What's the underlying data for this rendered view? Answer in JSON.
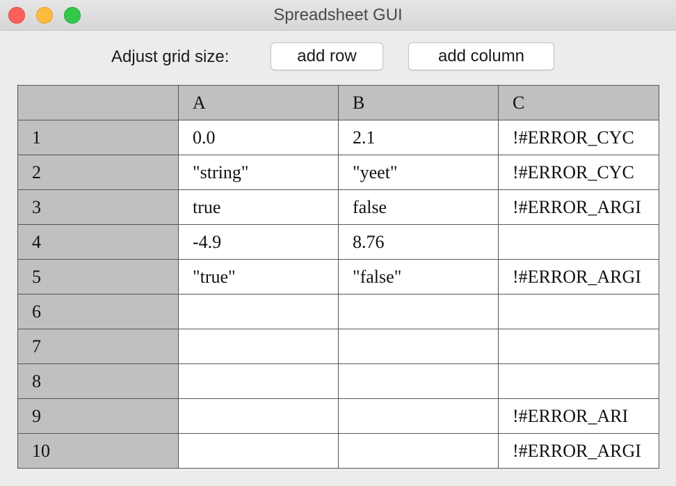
{
  "window": {
    "title": "Spreadsheet GUI"
  },
  "toolbar": {
    "label": "Adjust grid size:",
    "add_row_label": "add row",
    "add_column_label": "add column"
  },
  "grid": {
    "corner": "",
    "columns": [
      "A",
      "B",
      "C"
    ],
    "rows": [
      {
        "label": "1",
        "cells": [
          "0.0",
          "2.1",
          "!#ERROR_CYC"
        ]
      },
      {
        "label": "2",
        "cells": [
          "\"string\"",
          "\"yeet\"",
          "!#ERROR_CYC"
        ]
      },
      {
        "label": "3",
        "cells": [
          "true",
          "false",
          "!#ERROR_ARGI"
        ]
      },
      {
        "label": "4",
        "cells": [
          "-4.9",
          "8.76",
          ""
        ]
      },
      {
        "label": "5",
        "cells": [
          "\"true\"",
          "\"false\"",
          "!#ERROR_ARGI"
        ]
      },
      {
        "label": "6",
        "cells": [
          "",
          "",
          ""
        ]
      },
      {
        "label": "7",
        "cells": [
          "",
          "",
          ""
        ]
      },
      {
        "label": "8",
        "cells": [
          "",
          "",
          ""
        ]
      },
      {
        "label": "9",
        "cells": [
          "",
          "",
          "!#ERROR_ARI"
        ]
      },
      {
        "label": "10",
        "cells": [
          "",
          "",
          "!#ERROR_ARGI"
        ]
      }
    ]
  },
  "colors": {
    "header_bg": "#c0c0c0",
    "cell_bg": "#ffffff",
    "window_bg": "#ececec"
  }
}
